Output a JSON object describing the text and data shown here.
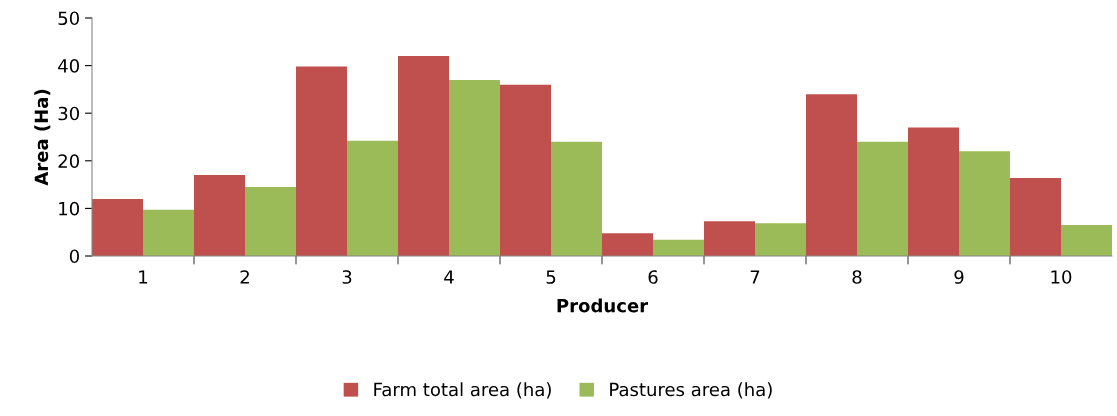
{
  "chart_data": {
    "type": "bar",
    "xlabel": "Producer",
    "ylabel": "Area (Ha)",
    "categories": [
      "1",
      "2",
      "3",
      "4",
      "5",
      "6",
      "7",
      "8",
      "9",
      "10"
    ],
    "series": [
      {
        "name": "Farm total area (ha)",
        "color": "#c0504d",
        "values": [
          12,
          17,
          39.8,
          42,
          36,
          4.8,
          7.3,
          34,
          27,
          16.4
        ]
      },
      {
        "name": "Pastures area (ha)",
        "color": "#9bbb59",
        "values": [
          9.7,
          14.5,
          24.2,
          37,
          24,
          3.4,
          6.9,
          24,
          22,
          6.5
        ]
      }
    ],
    "ylim": [
      0,
      50
    ],
    "yticks": [
      0,
      10,
      20,
      30,
      40,
      50
    ],
    "grid": false,
    "legend": "bottom"
  }
}
